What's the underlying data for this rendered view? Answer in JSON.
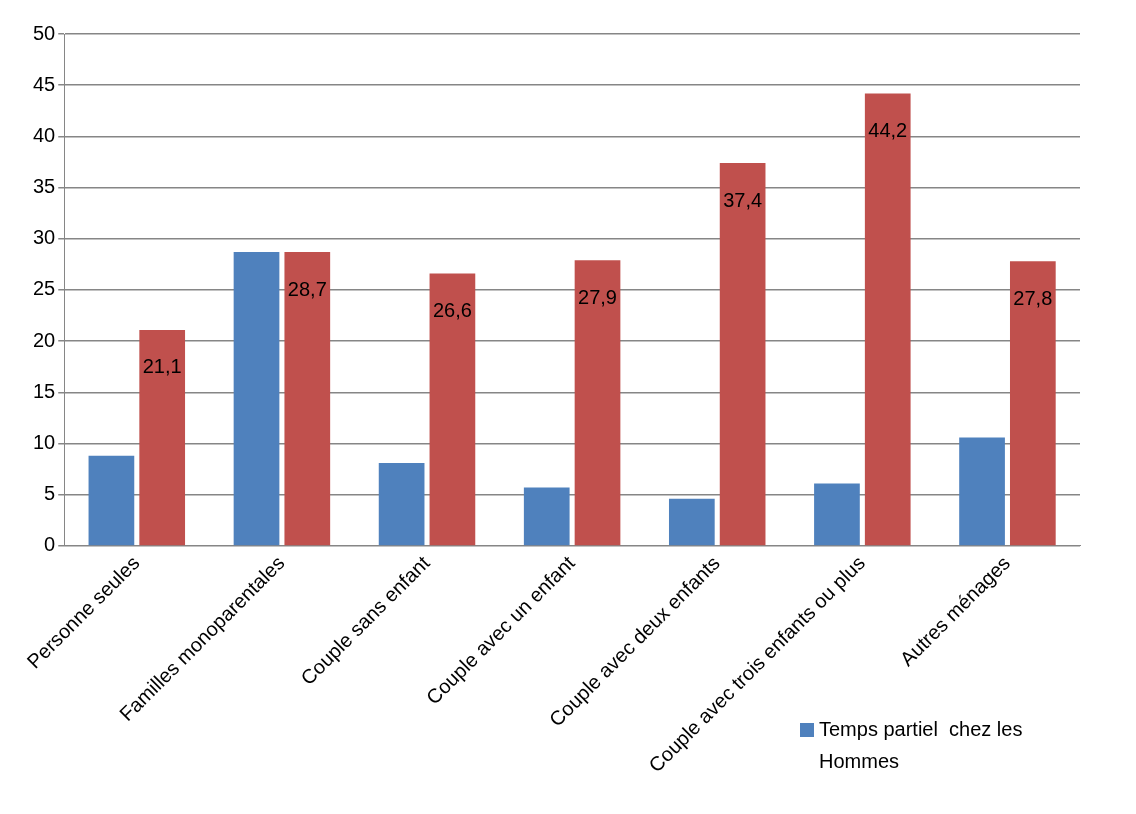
{
  "chart_data": {
    "type": "bar",
    "categories": [
      "Personne seules",
      "Familles monoparentales",
      "Couple sans enfant",
      "Couple avec un enfant",
      "Couple avec deux enfants",
      "Couple avec trois enfants ou plus",
      "Autres ménages"
    ],
    "series": [
      {
        "name": "Temps partiel  chez les Hommes",
        "color": "#4f81bd",
        "values": [
          8.8,
          28.7,
          8.1,
          5.7,
          4.6,
          6.1,
          10.6
        ]
      },
      {
        "color": "#c0504d",
        "values": [
          21.1,
          28.7,
          26.6,
          27.9,
          37.4,
          44.2,
          27.8
        ],
        "value_labels": [
          "21,1",
          "28,7",
          "26,6",
          "27,9",
          "37,4",
          "44,2",
          "27,8"
        ]
      }
    ],
    "ylim": [
      0,
      50
    ],
    "yticks": [
      0,
      5,
      10,
      15,
      20,
      25,
      30,
      35,
      40,
      45,
      50
    ],
    "grid": "y",
    "legend": "bottom right"
  }
}
